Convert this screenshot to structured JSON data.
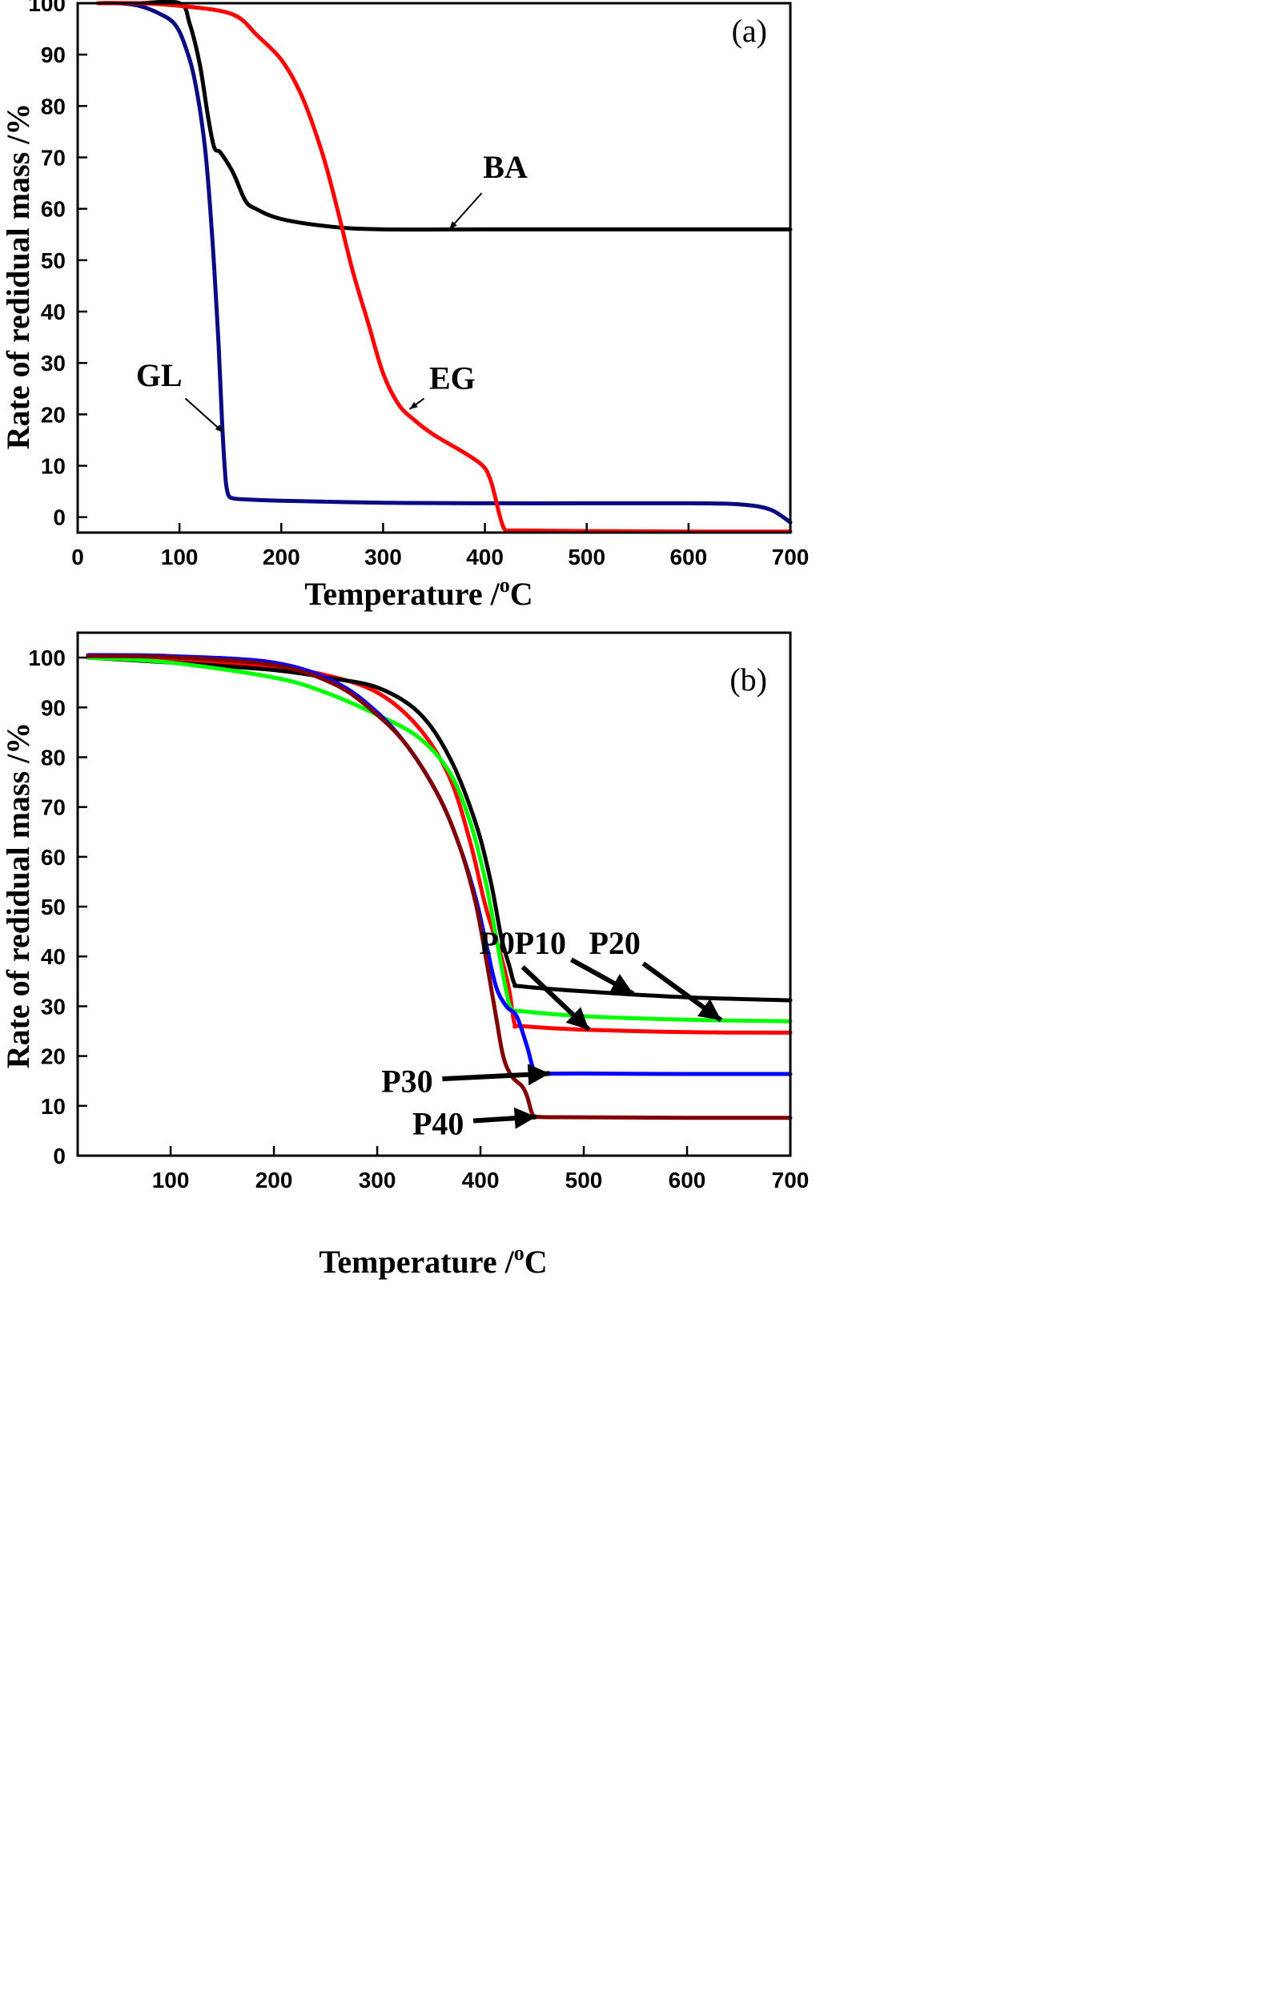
{
  "chart_data": [
    {
      "type": "line",
      "panel_label": "(a)",
      "xlabel": "Temperature /",
      "xlabel_unit": "C",
      "xlabel_sup": "o",
      "ylabel": "Rate of redidual mass /%",
      "xlim": [
        0,
        700
      ],
      "ylim": [
        -3,
        100
      ],
      "xticks": [
        0,
        100,
        200,
        300,
        400,
        500,
        600,
        700
      ],
      "yticks": [
        0,
        10,
        20,
        30,
        40,
        50,
        60,
        70,
        80,
        90,
        100
      ],
      "grid": false,
      "series": [
        {
          "name": "BA",
          "color": "#000000",
          "x": [
            20,
            60,
            100,
            110,
            120,
            128,
            134,
            140,
            150,
            155,
            165,
            175,
            200,
            250,
            300,
            400,
            500,
            600,
            700
          ],
          "y": [
            100,
            100,
            100,
            96,
            88,
            78,
            72,
            71,
            68,
            66,
            61.5,
            60,
            58,
            56.5,
            56,
            56,
            56,
            56,
            56
          ]
        },
        {
          "name": "GL",
          "color": "#0a0a82",
          "x": [
            20,
            40,
            60,
            80,
            95,
            105,
            115,
            125,
            132,
            138,
            142,
            145,
            147,
            149,
            152,
            160,
            200,
            300,
            400,
            500,
            600,
            650,
            680,
            700
          ],
          "y": [
            100,
            100,
            99.5,
            98,
            96,
            92,
            85,
            72,
            55,
            35,
            18,
            8,
            5,
            4,
            3.7,
            3.5,
            3.2,
            2.8,
            2.7,
            2.7,
            2.7,
            2.5,
            1.5,
            -1
          ]
        },
        {
          "name": "EG",
          "color": "#ff0000",
          "x": [
            20,
            60,
            100,
            140,
            160,
            175,
            200,
            220,
            240,
            255,
            270,
            285,
            300,
            315,
            330,
            350,
            380,
            398,
            405,
            410,
            415,
            420,
            430,
            500,
            600,
            700
          ],
          "y": [
            100,
            100,
            99.5,
            98.5,
            97,
            94,
            89,
            82,
            71,
            60,
            48,
            38,
            28,
            22,
            19,
            16,
            12.5,
            10,
            7.5,
            4,
            0,
            -2.5,
            -2.6,
            -2.7,
            -2.8,
            -2.8
          ]
        }
      ],
      "annotations": [
        {
          "text": "BA",
          "series": "BA",
          "text_x": 420,
          "text_y": 66,
          "arrow_x": 365,
          "arrow_y": 56
        },
        {
          "text": "GL",
          "series": "GL",
          "text_x": 80,
          "text_y": 25.5,
          "arrow_x": 143,
          "arrow_y": 16.5
        },
        {
          "text": "EG",
          "series": "EG",
          "text_x": 368,
          "text_y": 25,
          "arrow_x": 326,
          "arrow_y": 21
        }
      ]
    },
    {
      "type": "line",
      "panel_label": "(b)",
      "xlabel": "Temperature /",
      "xlabel_unit": "C",
      "xlabel_sup": "o",
      "ylabel": "Rate of redidual mass /%",
      "xlim": [
        10,
        700
      ],
      "ylim": [
        0,
        105
      ],
      "xticks": [
        100,
        200,
        300,
        400,
        500,
        600,
        700
      ],
      "yticks": [
        0,
        10,
        20,
        30,
        40,
        50,
        60,
        70,
        80,
        90,
        100
      ],
      "grid": false,
      "series": [
        {
          "name": "P0",
          "color": "#ff0000",
          "x": [
            20,
            100,
            200,
            250,
            300,
            340,
            370,
            390,
            405,
            420,
            428,
            433,
            440,
            500,
            600,
            700
          ],
          "y": [
            100,
            99.5,
            98,
            96.5,
            93,
            86,
            76,
            63,
            50,
            40,
            33,
            26.5,
            26,
            25.3,
            24.8,
            24.7
          ]
        },
        {
          "name": "P10",
          "color": "#000000",
          "x": [
            20,
            100,
            200,
            250,
            300,
            340,
            370,
            395,
            410,
            420,
            428,
            433,
            440,
            500,
            600,
            700
          ],
          "y": [
            100,
            99,
            97.5,
            96,
            94,
            89,
            80,
            67,
            55,
            44,
            38,
            34.5,
            34,
            33,
            31.8,
            31.2
          ]
        },
        {
          "name": "P20",
          "color": "#00ff00",
          "x": [
            20,
            100,
            200,
            250,
            300,
            340,
            370,
            390,
            405,
            415,
            425,
            430,
            440,
            500,
            600,
            700
          ],
          "y": [
            100,
            99,
            96,
            93,
            88.5,
            84,
            77,
            67,
            55,
            44,
            33,
            29.5,
            29,
            28,
            27.3,
            27
          ]
        },
        {
          "name": "P30",
          "color": "#0000ff",
          "x": [
            20,
            100,
            200,
            260,
            300,
            330,
            360,
            380,
            395,
            405,
            415,
            425,
            435,
            445,
            452,
            460,
            500,
            600,
            700
          ],
          "y": [
            100.5,
            100.3,
            99,
            95,
            89,
            82,
            72,
            62,
            52,
            43,
            34,
            30,
            28,
            22,
            17,
            16.5,
            16.5,
            16.4,
            16.4
          ]
        },
        {
          "name": "P40",
          "color": "#800000",
          "x": [
            20,
            100,
            200,
            260,
            300,
            330,
            360,
            380,
            395,
            405,
            415,
            422,
            430,
            440,
            445,
            450,
            455,
            500,
            600,
            700
          ],
          "y": [
            100.3,
            100.1,
            98.5,
            94.5,
            88.5,
            82,
            72,
            62,
            51,
            40,
            28,
            20,
            16,
            14,
            12,
            8.5,
            7.8,
            7.7,
            7.6,
            7.6
          ]
        }
      ],
      "annotations": [
        {
          "text": "P0",
          "series": "P0",
          "text_x": 416,
          "text_y": 40.5,
          "arrow_x": 505,
          "arrow_y": 25.3
        },
        {
          "text": "P10",
          "series": "P10",
          "text_x": 458,
          "text_y": 40.5,
          "arrow_x": 548,
          "arrow_y": 32.5
        },
        {
          "text": "P20",
          "series": "P20",
          "text_x": 530,
          "text_y": 40.5,
          "arrow_x": 633,
          "arrow_y": 27.2
        },
        {
          "text": "P30",
          "series": "P30",
          "text_x": 329,
          "text_y": 12.8,
          "arrow_x": 467,
          "arrow_y": 16.5
        },
        {
          "text": "P40",
          "series": "P40",
          "text_x": 359,
          "text_y": 4.3,
          "arrow_x": 454,
          "arrow_y": 7.8
        }
      ]
    }
  ]
}
